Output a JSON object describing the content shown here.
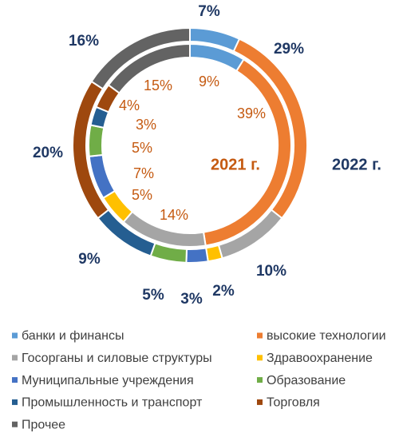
{
  "chart_data": {
    "type": "donut",
    "categories": [
      "банки и финансы",
      "высокие технологии",
      "Госорганы и силовые структуры",
      "Здравоохранение",
      "Муниципальные учреждения",
      "Образование",
      "Промышленность и транспорт",
      "Торговля",
      "Прочее"
    ],
    "colors": [
      "#5b9bd5",
      "#ed7d31",
      "#a5a5a5",
      "#ffc000",
      "#4472c4",
      "#70ad47",
      "#255e91",
      "#9e480e",
      "#636363"
    ],
    "series": [
      {
        "name": "2021 г.",
        "values": [
          9,
          39,
          14,
          5,
          7,
          5,
          3,
          4,
          15
        ],
        "value_labels": [
          "9%",
          "39%",
          "14%",
          "5%",
          "7%",
          "5%",
          "3%",
          "4%",
          "15%"
        ]
      },
      {
        "name": "2022 г.",
        "values": [
          7,
          29,
          10,
          2,
          3,
          5,
          9,
          20,
          16
        ],
        "value_labels": [
          "7%",
          "29%",
          "10%",
          "2%",
          "3%",
          "5%",
          "9%",
          "20%",
          "16%"
        ]
      }
    ],
    "legend": "bottom"
  }
}
